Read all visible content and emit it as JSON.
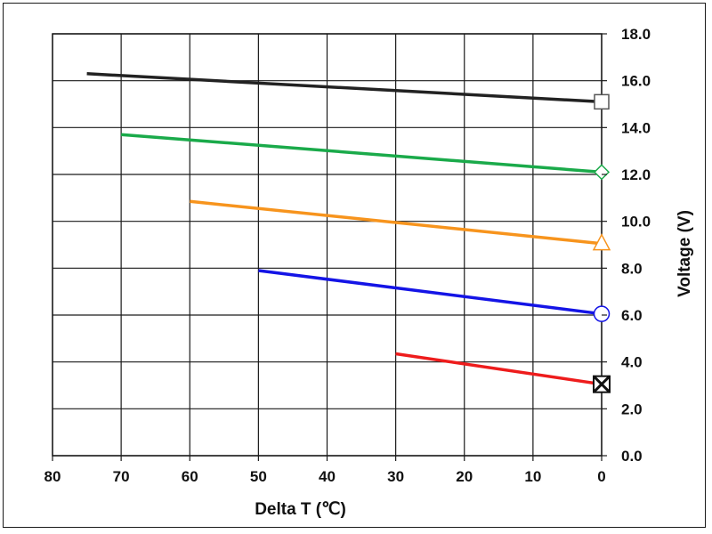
{
  "chart_data": {
    "type": "line",
    "title": "",
    "xlabel": "Delta T (℃)",
    "ylabel": "Voltage (V)",
    "xlim": [
      80,
      0
    ],
    "ylim": [
      0,
      18
    ],
    "x_reversed": true,
    "y_axis_side": "right",
    "grid": true,
    "x_ticks": [
      "80",
      "70",
      "60",
      "50",
      "40",
      "30",
      "20",
      "10",
      "0"
    ],
    "y_ticks": [
      "0.0",
      "2.0",
      "4.0",
      "6.0",
      "8.0",
      "10.0",
      "12.0",
      "14.0",
      "16.0",
      "18.0"
    ],
    "series": [
      {
        "color": "#222222",
        "marker": "square",
        "x": [
          75,
          0
        ],
        "y": [
          16.3,
          15.1
        ]
      },
      {
        "color": "#1aaa4a",
        "marker": "diamond",
        "x": [
          70,
          0
        ],
        "y": [
          13.7,
          12.1
        ]
      },
      {
        "color": "#f7941d",
        "marker": "triangle",
        "x": [
          60,
          0
        ],
        "y": [
          10.85,
          9.05
        ]
      },
      {
        "color": "#1414e6",
        "marker": "circle",
        "x": [
          50,
          0
        ],
        "y": [
          7.9,
          6.05
        ]
      },
      {
        "color": "#ee1c1c",
        "marker": "x-square",
        "x": [
          30,
          0
        ],
        "y": [
          4.35,
          3.05
        ]
      }
    ]
  }
}
